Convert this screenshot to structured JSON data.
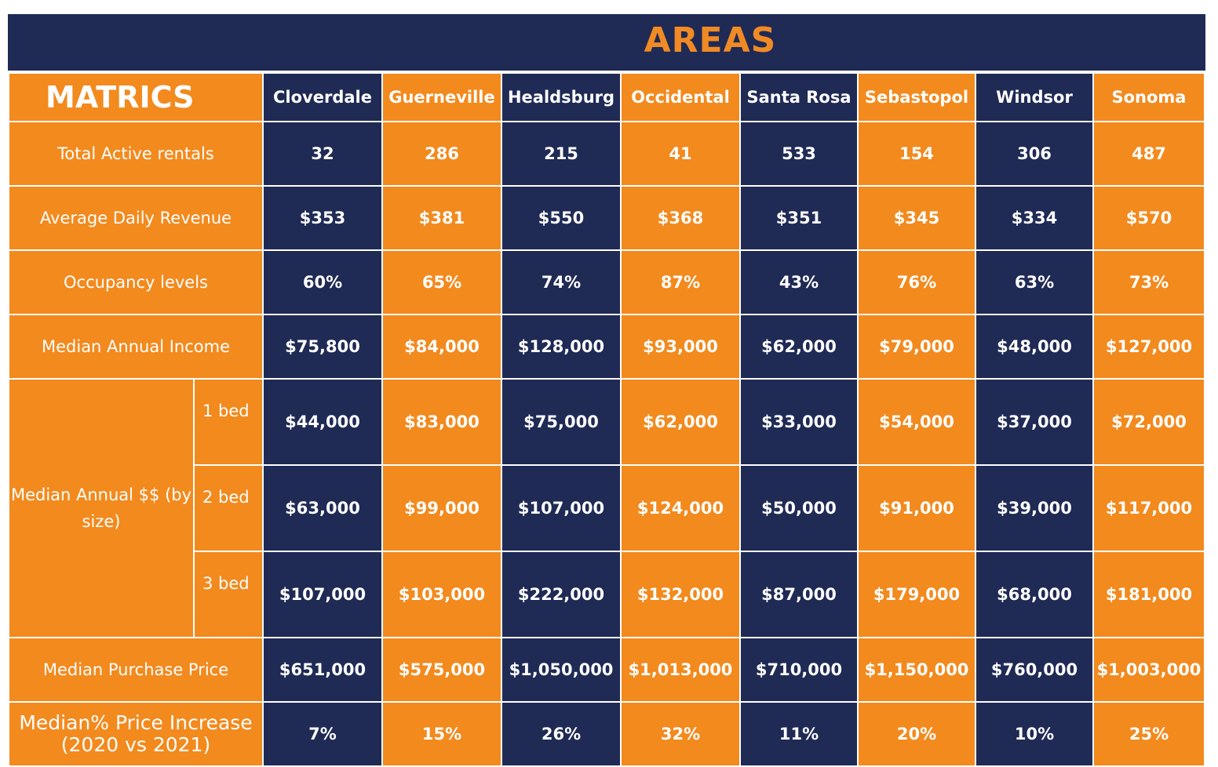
{
  "title": "AREAS",
  "corner_label": "MATRICS",
  "areas": [
    "Cloverdale",
    "Guerneville",
    "Healdsburg",
    "Occidental",
    "Santa Rosa",
    "Sebastopol",
    "Windsor",
    "Sonoma"
  ],
  "rows": {
    "total_active": {
      "label": "Total Active rentals",
      "values": [
        "32",
        "286",
        "215",
        "41",
        "533",
        "154",
        "306",
        "487"
      ]
    },
    "avg_daily": {
      "label": "Average Daily Revenue",
      "values": [
        "$353",
        "$381",
        "$550",
        "$368",
        "$351",
        "$345",
        "$334",
        "$570"
      ]
    },
    "occupancy": {
      "label": "Occupancy levels",
      "values": [
        "60%",
        "65%",
        "74%",
        "87%",
        "43%",
        "76%",
        "63%",
        "73%"
      ]
    },
    "median_income": {
      "label": "Median Annual Income",
      "values": [
        "$75,800",
        "$84,000",
        "$128,000",
        "$93,000",
        "$62,000",
        "$79,000",
        "$48,000",
        "$127,000"
      ]
    },
    "median_by_size": {
      "label": "Median Annual $$ (by size)",
      "bed1": {
        "label": "1 bed",
        "values": [
          "$44,000",
          "$83,000",
          "$75,000",
          "$62,000",
          "$33,000",
          "$54,000",
          "$37,000",
          "$72,000"
        ]
      },
      "bed2": {
        "label": "2 bed",
        "values": [
          "$63,000",
          "$99,000",
          "$107,000",
          "$124,000",
          "$50,000",
          "$91,000",
          "$39,000",
          "$117,000"
        ]
      },
      "bed3": {
        "label": "3 bed",
        "values": [
          "$107,000",
          "$103,000",
          "$222,000",
          "$132,000",
          "$87,000",
          "$179,000",
          "$68,000",
          "$181,000"
        ]
      }
    },
    "purchase_price": {
      "label": "Median Purchase Price",
      "values": [
        "$651,000",
        "$575,000",
        "$1,050,000",
        "$1,013,000",
        "$710,000",
        "$1,150,000",
        "$760,000",
        "$1,003,000"
      ]
    },
    "price_increase": {
      "label": "Median% Price Increase (2020 vs 2021)",
      "values": [
        "7%",
        "15%",
        "26%",
        "32%",
        "11%",
        "20%",
        "10%",
        "25%"
      ]
    }
  },
  "colors": {
    "navy": "#1f2a55",
    "orange": "#f28a1e",
    "title_orange": "#f08a24"
  }
}
